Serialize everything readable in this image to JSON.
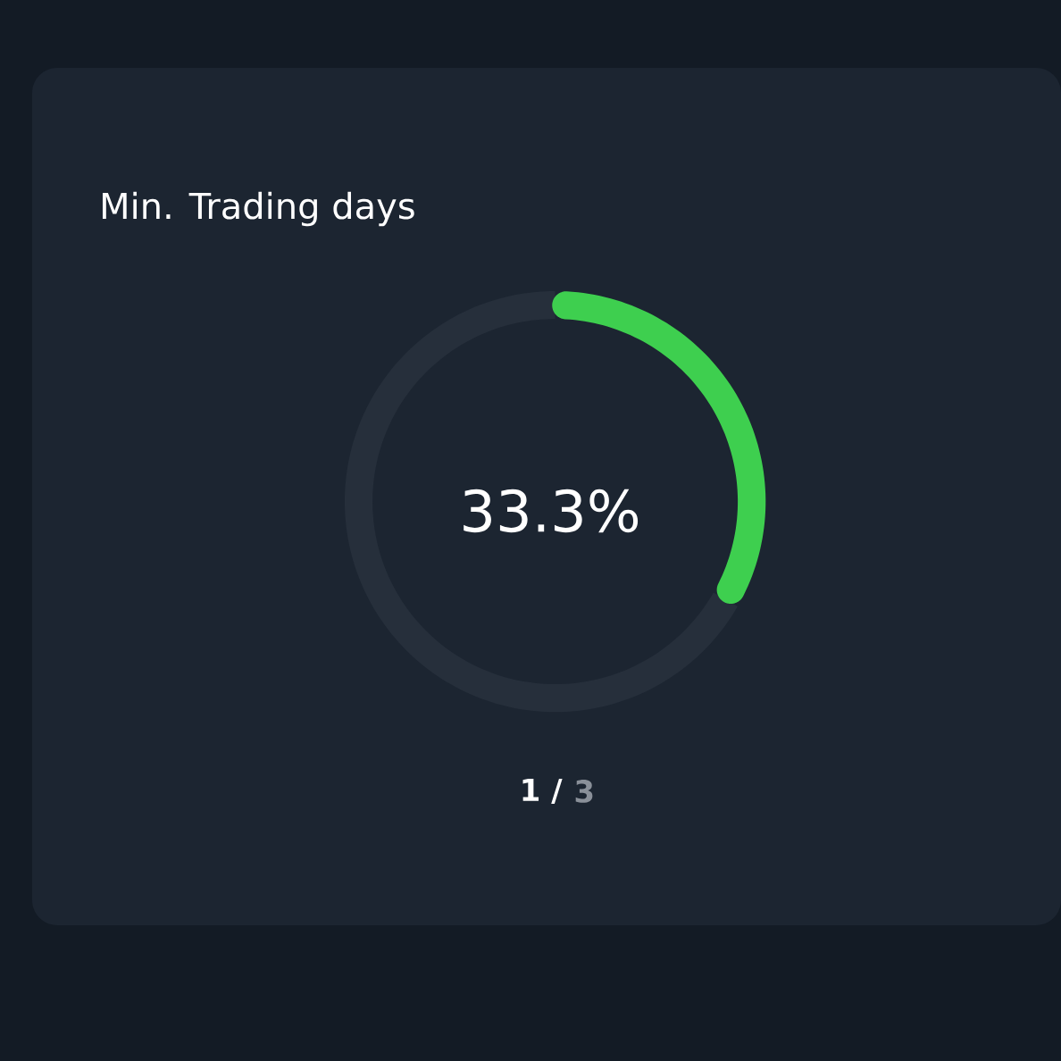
{
  "chart_data": {
    "type": "donut",
    "title": "Min. Trading days",
    "categories": [
      null,
      null
    ],
    "values": [
      33.3,
      66.7
    ],
    "colors": [
      "#3ecf4f",
      "#262f3b"
    ],
    "annotations": [
      "33.3%",
      "1 /",
      "3"
    ]
  }
}
